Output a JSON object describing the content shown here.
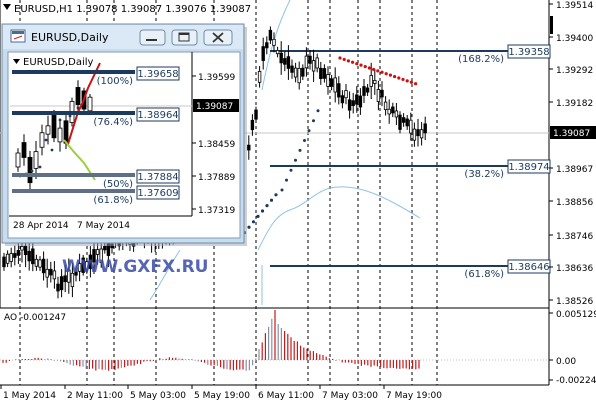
{
  "main_chart": {
    "header": "EURUSD,H1  1.39078 1.39087 1.39076 1.39087",
    "price_scale": [
      "1.39514",
      "1.39400",
      "1.39292",
      "1.39182",
      "1.38967",
      "1.38856",
      "1.38746",
      "1.38636",
      "1.38526"
    ],
    "current_price": "1.39087",
    "levels": [
      {
        "price": "1.39358",
        "pct": "(168.2%)"
      },
      {
        "price": "1.38974",
        "pct": "(38.2%)"
      },
      {
        "price": "1.38646",
        "pct": "(61.8%)"
      }
    ],
    "watermark": "WWW.GXFX.RU"
  },
  "ao_panel": {
    "label": "AO -0.001247",
    "scale": [
      "0.005129",
      "0.00",
      "-0.002244"
    ]
  },
  "time_axis": [
    "1 May 2014",
    "2 May 11:00",
    "5 May 03:00",
    "5 May 19:00",
    "6 May 11:00",
    "7 May 03:00",
    "7 May 19:00"
  ],
  "inset": {
    "title": "EURUSD,Daily",
    "header": "EURUSD,Daily",
    "buttons": {
      "minimize": "▭",
      "maximize": "□",
      "close": "✕"
    },
    "price_scale": [
      "1.39599",
      "1.38459",
      "1.37889",
      "1.37319"
    ],
    "current_price": "1.39087",
    "levels": [
      {
        "price": "1.39658",
        "pct": "(100%)"
      },
      {
        "price": "1.38964",
        "pct": "(76.4%)"
      },
      {
        "price": "1.37884",
        "pct": "(50%)"
      },
      {
        "price": "1.37609",
        "pct": "(61.8%)"
      }
    ],
    "time_axis": [
      "28 Apr 2014",
      "7 May 2014"
    ]
  },
  "colors": {
    "level_line": "#1c3a5e",
    "label_text": "#1c3a5e",
    "psar": "#1c3a5e",
    "psar_red": "#cc1111",
    "ao_up": "#8a8fa3",
    "ao_down": "#c41a1a",
    "watermark": "#3a4aa8"
  }
}
